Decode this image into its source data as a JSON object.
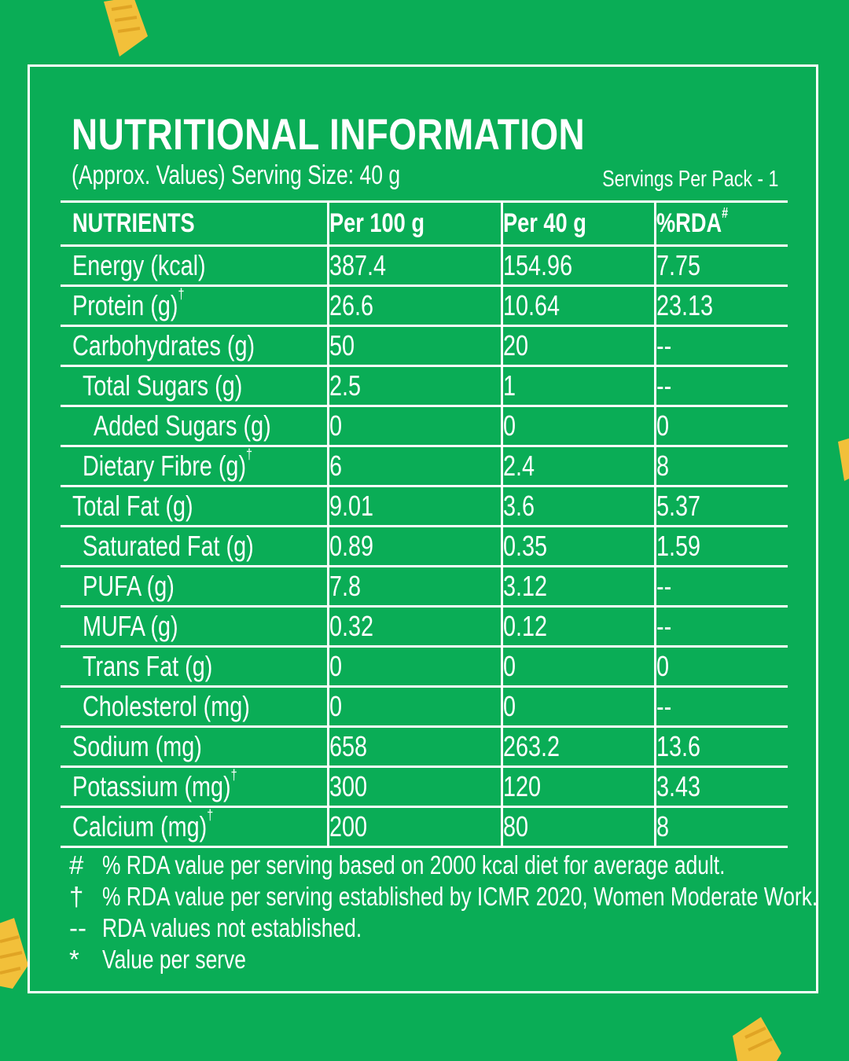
{
  "title": "NUTRITIONAL INFORMATION",
  "subtitle": "(Approx. Values) Serving Size: 40 g",
  "servings": "Servings Per Pack - 1",
  "headers": {
    "nutrients": "NUTRIENTS",
    "per100": "Per 100 g",
    "per40": "Per 40 g",
    "rda": "%RDA",
    "rda_mark": "#"
  },
  "rows": [
    {
      "name": "Energy (kcal)",
      "mark": "",
      "per100": "387.4",
      "per40": "154.96",
      "rda": "7.75"
    },
    {
      "name": "Protein (g)",
      "mark": "†",
      "per100": "26.6",
      "per40": "10.64",
      "rda": "23.13"
    },
    {
      "name": "Carbohydrates (g)",
      "mark": "",
      "per100": "50",
      "per40": "20",
      "rda": "--"
    },
    {
      "name": "Total Sugars (g)",
      "mark": "",
      "per100": "2.5",
      "per40": "1",
      "rda": "--"
    },
    {
      "name": "Added Sugars (g)",
      "mark": "",
      "per100": "0",
      "per40": "0",
      "rda": "0"
    },
    {
      "name": "Dietary Fibre (g)",
      "mark": "†",
      "per100": "6",
      "per40": "2.4",
      "rda": "8"
    },
    {
      "name": "Total Fat (g)",
      "mark": "",
      "per100": "9.01",
      "per40": "3.6",
      "rda": "5.37"
    },
    {
      "name": "Saturated Fat (g)",
      "mark": "",
      "per100": "0.89",
      "per40": "0.35",
      "rda": "1.59"
    },
    {
      "name": "PUFA (g)",
      "mark": "",
      "per100": "7.8",
      "per40": "3.12",
      "rda": "--"
    },
    {
      "name": "MUFA (g)",
      "mark": "",
      "per100": "0.32",
      "per40": "0.12",
      "rda": "--"
    },
    {
      "name": "Trans Fat (g)",
      "mark": "",
      "per100": "0",
      "per40": "0",
      "rda": "0"
    },
    {
      "name": "Cholesterol (mg)",
      "mark": "",
      "per100": "0",
      "per40": "0",
      "rda": "--"
    },
    {
      "name": "Sodium (mg)",
      "mark": "",
      "per100": "658",
      "per40": "263.2",
      "rda": "13.6"
    },
    {
      "name": "Potassium (mg)",
      "mark": "†",
      "per100": "300",
      "per40": "120",
      "rda": "3.43"
    },
    {
      "name": "Calcium (mg)",
      "mark": "†",
      "per100": "200",
      "per40": "80",
      "rda": "8"
    }
  ],
  "notes": [
    {
      "symbol": "#",
      "text": "% RDA value per serving based on 2000 kcal diet for average adult."
    },
    {
      "symbol": "†",
      "text": "% RDA value per serving established by ICMR 2020, Women Moderate Work."
    },
    {
      "symbol": "--",
      "text": "RDA values not established."
    },
    {
      "symbol": "*",
      "text": "Value per serve"
    }
  ],
  "colors": {
    "background": "#0aad56",
    "text": "#ffffff",
    "chip": "#f2c03a"
  }
}
